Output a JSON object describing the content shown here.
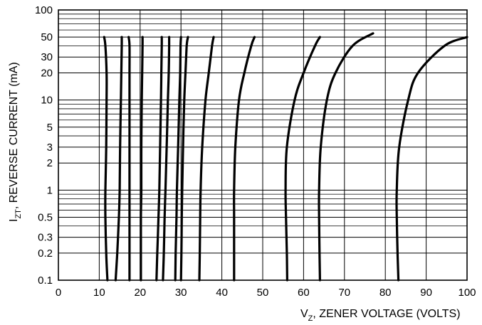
{
  "chart_data": {
    "type": "line",
    "title": "",
    "xlabel_main": "V",
    "xlabel_sub": "Z",
    "xlabel_rest": ", ZENER VOLTAGE (VOLTS)",
    "ylabel_main": "I",
    "ylabel_sub": "ZT",
    "ylabel_rest": ", REVERSE CURRENT (mA)",
    "xlim": [
      0,
      100
    ],
    "ylim": [
      0.1,
      100
    ],
    "yscale": "log",
    "grid": true,
    "x_ticks": [
      "0",
      "10",
      "20",
      "30",
      "40",
      "50",
      "60",
      "70",
      "80",
      "90",
      "100"
    ],
    "x_tick_values": [
      0,
      10,
      20,
      30,
      40,
      50,
      60,
      70,
      80,
      90,
      100
    ],
    "y_ticks": [
      "0.1",
      "0.2",
      "0.3",
      "0.5",
      "1",
      "2",
      "3",
      "5",
      "10",
      "20",
      "30",
      "50",
      "100"
    ],
    "y_tick_values": [
      0.1,
      0.2,
      0.3,
      0.5,
      1,
      2,
      3,
      5,
      10,
      20,
      30,
      50,
      100
    ],
    "y_minor_values": [
      0.4,
      0.6,
      0.7,
      0.8,
      0.9,
      4,
      6,
      7,
      8,
      9,
      40,
      60,
      70,
      80,
      90
    ],
    "series": [
      {
        "x": [
          12,
          11.7,
          11.5,
          11.5,
          11.7,
          11.8,
          11.8,
          11.5,
          11.2
        ],
        "y": [
          0.1,
          0.2,
          0.5,
          1,
          3,
          10,
          20,
          40,
          50
        ]
      },
      {
        "x": [
          14,
          14.4,
          14.8,
          15.0,
          15.1,
          15.3,
          15.4,
          15.5,
          15.5
        ],
        "y": [
          0.1,
          0.2,
          0.5,
          1,
          3,
          10,
          20,
          40,
          50
        ]
      },
      {
        "x": [
          17.4,
          17.4,
          17.4,
          17.4,
          17.4,
          17.4,
          17.4,
          17.4,
          17.2
        ],
        "y": [
          0.1,
          0.2,
          0.5,
          1,
          3,
          10,
          20,
          40,
          50
        ]
      },
      {
        "x": [
          20.2,
          20.2,
          20.2,
          20.3,
          20.3,
          20.4,
          20.5,
          20.6,
          20.6
        ],
        "y": [
          0.1,
          0.2,
          0.5,
          1,
          3,
          10,
          20,
          40,
          50
        ]
      },
      {
        "x": [
          24.0,
          24.2,
          24.5,
          24.7,
          24.9,
          25.1,
          25.2,
          25.3,
          25.3
        ],
        "y": [
          0.1,
          0.2,
          0.5,
          1,
          3,
          10,
          20,
          40,
          50
        ]
      },
      {
        "x": [
          25.6,
          25.8,
          26.0,
          26.2,
          26.5,
          26.8,
          27.0,
          27.1,
          27.1
        ],
        "y": [
          0.1,
          0.2,
          0.5,
          1,
          3,
          10,
          20,
          40,
          50
        ]
      },
      {
        "x": [
          28.6,
          28.7,
          28.9,
          29.0,
          29.3,
          29.6,
          29.8,
          29.9,
          30.0
        ],
        "y": [
          0.1,
          0.2,
          0.5,
          1,
          3,
          10,
          20,
          40,
          50
        ]
      },
      {
        "x": [
          30.0,
          30.1,
          30.2,
          30.3,
          30.5,
          30.8,
          31.1,
          31.4,
          31.7
        ],
        "y": [
          0.1,
          0.2,
          0.5,
          1,
          3,
          10,
          20,
          40,
          50
        ]
      },
      {
        "x": [
          34.5,
          34.6,
          34.7,
          34.8,
          35.2,
          36.0,
          36.8,
          37.6,
          38.0
        ],
        "y": [
          0.1,
          0.2,
          0.5,
          1,
          3,
          10,
          20,
          40,
          50
        ]
      },
      {
        "x": [
          43.0,
          43.0,
          43.0,
          43.0,
          43.3,
          44.2,
          45.5,
          47.2,
          48.0
        ],
        "y": [
          0.1,
          0.2,
          0.5,
          1,
          3,
          10,
          20,
          40,
          50
        ]
      },
      {
        "x": [
          56.0,
          55.9,
          55.7,
          55.6,
          55.9,
          57.8,
          60.0,
          62.8,
          64.0
        ],
        "y": [
          0.1,
          0.2,
          0.5,
          1,
          3,
          10,
          20,
          40,
          50
        ]
      },
      {
        "x": [
          64.0,
          63.9,
          63.8,
          63.8,
          64.2,
          65.7,
          67.8,
          72.0,
          77.0
        ],
        "y": [
          0.1,
          0.2,
          0.5,
          1,
          3,
          10,
          20,
          40,
          55
        ]
      },
      {
        "x": [
          83.2,
          83.0,
          82.8,
          82.8,
          83.4,
          85.6,
          88.0,
          94.5,
          100.0
        ],
        "y": [
          0.1,
          0.2,
          0.5,
          1,
          3,
          10,
          20,
          40,
          50
        ]
      }
    ]
  }
}
